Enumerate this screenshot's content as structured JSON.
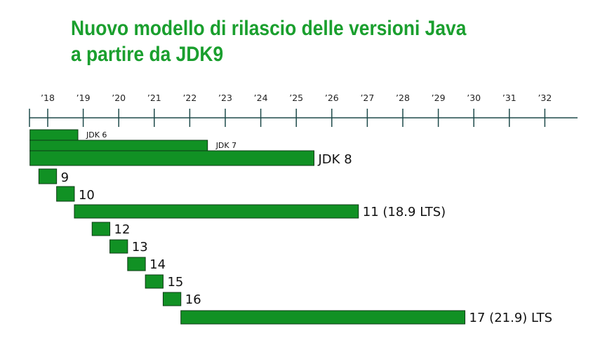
{
  "title": {
    "line1": "Nuovo modello di rilascio delle versioni Java",
    "line2": "a partire da JDK9"
  },
  "colors": {
    "title": "#1a9f2e",
    "bar_fill": "#119124",
    "bar_stroke": "#0d3b16",
    "axis": "#1e4a4a"
  },
  "chart_data": {
    "type": "bar",
    "orientation": "horizontal-timeline",
    "title": "Nuovo modello di rilascio delle versioni Java a partire da JDK9",
    "x_axis": {
      "tick_labels": [
        "’18",
        "’19",
        "’20",
        "’21",
        "’22",
        "’23",
        "’24",
        "’25",
        "’26",
        "’27",
        "’28",
        "’29",
        "’30",
        "’31",
        "’32"
      ],
      "tick_values": [
        2018,
        2019,
        2020,
        2021,
        2022,
        2023,
        2024,
        2025,
        2026,
        2027,
        2028,
        2029,
        2030,
        2031,
        2032
      ],
      "range": [
        2017.5,
        2033.0
      ]
    },
    "bars": [
      {
        "label": "JDK 6",
        "start": 2017.5,
        "end": 2018.85,
        "label_size": "small"
      },
      {
        "label": "JDK 7",
        "start": 2017.5,
        "end": 2022.5,
        "label_size": "small"
      },
      {
        "label": "JDK 8",
        "start": 2017.5,
        "end": 2025.5,
        "label_size": "large"
      },
      {
        "label": "9",
        "start": 2017.75,
        "end": 2018.25,
        "label_size": "large"
      },
      {
        "label": "10",
        "start": 2018.25,
        "end": 2018.75,
        "label_size": "large"
      },
      {
        "label": "11 (18.9 LTS)",
        "start": 2018.75,
        "end": 2026.75,
        "label_size": "large"
      },
      {
        "label": "12",
        "start": 2019.25,
        "end": 2019.75,
        "label_size": "large"
      },
      {
        "label": "13",
        "start": 2019.75,
        "end": 2020.25,
        "label_size": "large"
      },
      {
        "label": "14",
        "start": 2020.25,
        "end": 2020.75,
        "label_size": "large"
      },
      {
        "label": "15",
        "start": 2020.75,
        "end": 2021.25,
        "label_size": "large"
      },
      {
        "label": "16",
        "start": 2021.25,
        "end": 2021.75,
        "label_size": "large"
      },
      {
        "label": "17 (21.9) LTS",
        "start": 2021.75,
        "end": 2029.75,
        "label_size": "large"
      }
    ]
  }
}
